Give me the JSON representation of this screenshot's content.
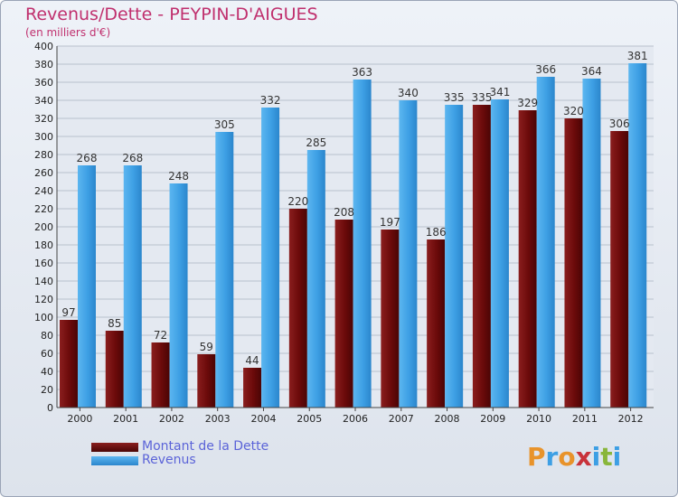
{
  "header": {
    "title": "Revenus/Dette - PEYPIN-D'AIGUES",
    "subtitle": "(en milliers d'€)"
  },
  "legend": {
    "items": [
      {
        "label": "Montant de la Dette",
        "color": "#6b0a0a"
      },
      {
        "label": "Revenus",
        "color": "#3d9fe4"
      }
    ]
  },
  "logo": {
    "text": "Proxiti"
  },
  "chart_data": {
    "type": "bar",
    "title": "Revenus/Dette - PEYPIN-D'AIGUES",
    "ylabel": "(en milliers d'€)",
    "categories": [
      "2000",
      "2001",
      "2002",
      "2003",
      "2004",
      "2005",
      "2006",
      "2007",
      "2008",
      "2009",
      "2010",
      "2011",
      "2012"
    ],
    "series": [
      {
        "name": "Montant de la Dette",
        "values": [
          97,
          85,
          72,
          59,
          44,
          220,
          208,
          197,
          186,
          335,
          329,
          320,
          306
        ],
        "color": "#6b0a0a"
      },
      {
        "name": "Revenus",
        "values": [
          268,
          268,
          248,
          305,
          332,
          285,
          363,
          340,
          335,
          341,
          366,
          364,
          381
        ],
        "color": "#3d9fe4"
      }
    ],
    "ylim": [
      0,
      400
    ],
    "ytick_step": 20,
    "grid": true,
    "legend_position": "bottom-left"
  }
}
